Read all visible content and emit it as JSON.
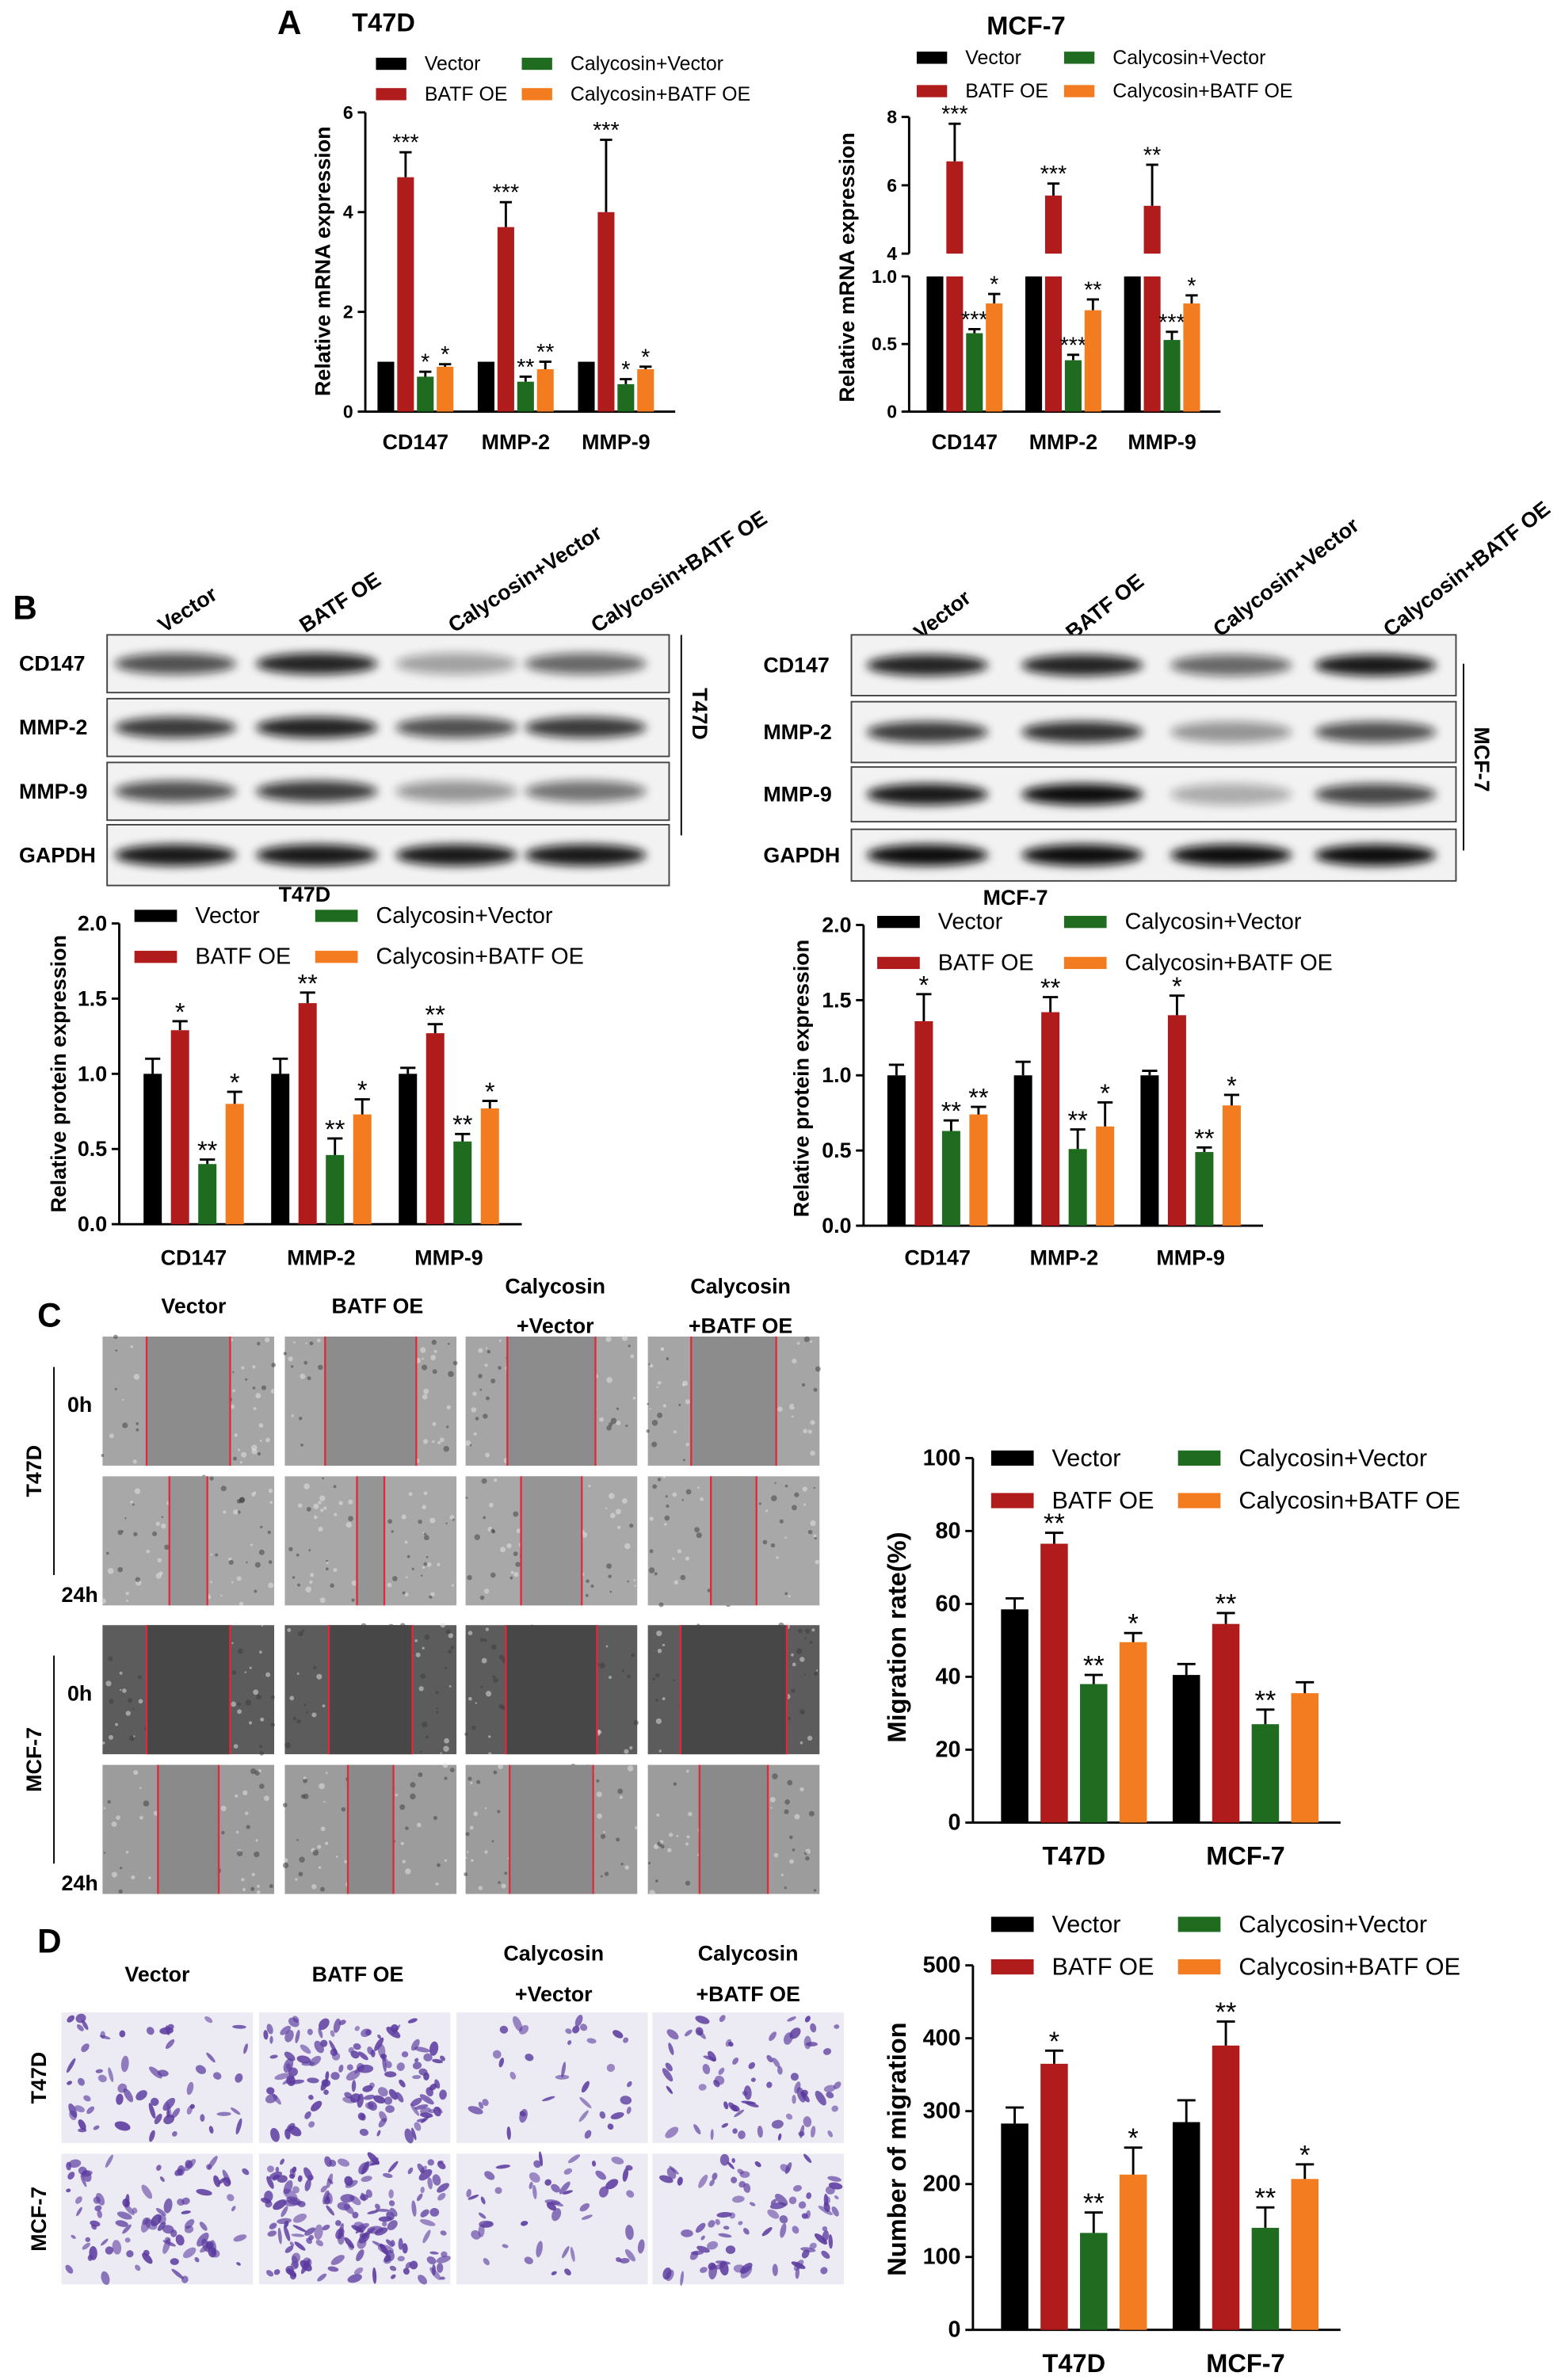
{
  "panels": [
    "A",
    "B",
    "C",
    "D"
  ],
  "chart_data": [
    {
      "type": "bar",
      "title": "T47D",
      "y_label": "Relative mRNA expression",
      "categories": [
        "CD147",
        "MMP-2",
        "MMP-9"
      ],
      "ylim": [
        0,
        6
      ],
      "yticks": [
        0,
        2,
        4,
        6
      ],
      "series": [
        {
          "name": "Vector",
          "color": "#000000",
          "values": [
            1,
            1,
            1
          ]
        },
        {
          "name": "BATF OE",
          "color": "#b01c1c",
          "values": [
            4.7,
            3.7,
            4.0
          ],
          "errors": [
            0.5,
            0.5,
            1.45
          ],
          "significance": [
            "***",
            "***",
            "***"
          ]
        },
        {
          "name": "Calycosin+Vector",
          "color": "#1f6b1f",
          "values": [
            0.7,
            0.6,
            0.55
          ],
          "errors": [
            0.1,
            0.1,
            0.1
          ],
          "significance": [
            "*",
            "**",
            "*"
          ]
        },
        {
          "name": "Calycosin+BATF OE",
          "color": "#f47c20",
          "values": [
            0.9,
            0.85,
            0.85
          ],
          "errors": [
            0.05,
            0.15,
            0.05
          ],
          "significance": [
            "*",
            "**",
            "*"
          ]
        }
      ]
    },
    {
      "type": "bar",
      "title": "MCF-7",
      "y_label": "Relative mRNA expression",
      "categories": [
        "CD147",
        "MMP-2",
        "MMP-9"
      ],
      "ylim": [
        0,
        1
      ],
      "yticks": [
        0,
        0.5,
        {
          "value": 1,
          "label": "1.0"
        }
      ],
      "ylim_upper": [
        4,
        8
      ],
      "yticks_upper": [
        4,
        6,
        8
      ],
      "series": [
        {
          "name": "Vector",
          "color": "#000000",
          "values": [
            1,
            1,
            1
          ]
        },
        {
          "name": "BATF OE",
          "color": "#b01c1c",
          "values": [
            6.7,
            5.7,
            5.4
          ],
          "errors": [
            1.1,
            0.35,
            1.2
          ],
          "significance": [
            "***",
            "***",
            "**"
          ]
        },
        {
          "name": "Calycosin+Vector",
          "color": "#1f6b1f",
          "values": [
            0.58,
            0.38,
            0.53
          ],
          "errors": [
            0.03,
            0.04,
            0.06
          ],
          "significance": [
            "***",
            "***",
            "***"
          ]
        },
        {
          "name": "Calycosin+BATF OE",
          "color": "#f47c20",
          "values": [
            0.8,
            0.75,
            0.8
          ],
          "errors": [
            0.07,
            0.08,
            0.06
          ],
          "significance": [
            "*",
            "**",
            "*"
          ]
        }
      ]
    },
    {
      "type": "bar",
      "title": "T47D",
      "y_label": "Relative protein expression",
      "categories": [
        "CD147",
        "MMP-2",
        "MMP-9"
      ],
      "ylim": [
        0,
        2
      ],
      "yticks": [
        {
          "value": 0,
          "label": "0.0"
        },
        0.5,
        {
          "value": 1,
          "label": "1.0"
        },
        1.5,
        {
          "value": 2,
          "label": "2.0"
        }
      ],
      "series": [
        {
          "name": "Vector",
          "color": "#000000",
          "values": [
            1.0,
            1.0,
            1.0
          ],
          "errors": [
            0.1,
            0.1,
            0.04
          ]
        },
        {
          "name": "BATF OE",
          "color": "#b01c1c",
          "values": [
            1.29,
            1.47,
            1.27
          ],
          "errors": [
            0.06,
            0.07,
            0.06
          ],
          "significance": [
            "*",
            "**",
            "**"
          ]
        },
        {
          "name": "Calycosin+Vector",
          "color": "#1f6b1f",
          "values": [
            0.4,
            0.46,
            0.55
          ],
          "errors": [
            0.03,
            0.11,
            0.05
          ],
          "significance": [
            "**",
            "**",
            "**"
          ]
        },
        {
          "name": "Calycosin+BATF OE",
          "color": "#f47c20",
          "values": [
            0.8,
            0.73,
            0.77
          ],
          "errors": [
            0.08,
            0.1,
            0.05
          ],
          "significance": [
            "*",
            "*",
            "*"
          ]
        }
      ]
    },
    {
      "type": "bar",
      "title": "MCF-7",
      "y_label": "Relative protein expression",
      "categories": [
        "CD147",
        "MMP-2",
        "MMP-9"
      ],
      "ylim": [
        0,
        2
      ],
      "yticks": [
        {
          "value": 0,
          "label": "0.0"
        },
        0.5,
        {
          "value": 1,
          "label": "1.0"
        },
        1.5,
        {
          "value": 2,
          "label": "2.0"
        }
      ],
      "series": [
        {
          "name": "Vector",
          "color": "#000000",
          "values": [
            1.0,
            1.0,
            1.0
          ],
          "errors": [
            0.07,
            0.09,
            0.03
          ]
        },
        {
          "name": "BATF OE",
          "color": "#b01c1c",
          "values": [
            1.36,
            1.42,
            1.4
          ],
          "errors": [
            0.18,
            0.1,
            0.13
          ],
          "significance": [
            "*",
            "**",
            "*"
          ]
        },
        {
          "name": "Calycosin+Vector",
          "color": "#1f6b1f",
          "values": [
            0.63,
            0.51,
            0.49
          ],
          "errors": [
            0.07,
            0.13,
            0.03
          ],
          "significance": [
            "**",
            "**",
            "**"
          ]
        },
        {
          "name": "Calycosin+BATF OE",
          "color": "#f47c20",
          "values": [
            0.74,
            0.66,
            0.8
          ],
          "errors": [
            0.05,
            0.16,
            0.07
          ],
          "significance": [
            "**",
            "*",
            "*"
          ]
        }
      ]
    },
    {
      "type": "bar",
      "y_label": "Migration rate(%)",
      "categories": [
        "T47D",
        "MCF-7"
      ],
      "ylim": [
        0,
        100
      ],
      "yticks": [
        0,
        20,
        40,
        60,
        80,
        100
      ],
      "series": [
        {
          "name": "Vector",
          "color": "#000000",
          "values": [
            58.5,
            40.5
          ],
          "errors": [
            3,
            3
          ]
        },
        {
          "name": "BATF OE",
          "color": "#b01c1c",
          "values": [
            76.5,
            54.5
          ],
          "errors": [
            3,
            3
          ],
          "significance": [
            "**",
            "**"
          ]
        },
        {
          "name": "Calycosin+Vector",
          "color": "#1f6b1f",
          "values": [
            38,
            27
          ],
          "errors": [
            2.5,
            4
          ],
          "significance": [
            "**",
            "**"
          ]
        },
        {
          "name": "Calycosin+BATF OE",
          "color": "#f47c20",
          "values": [
            49.5,
            35.5
          ],
          "errors": [
            2.5,
            3
          ],
          "significance": [
            "*",
            null
          ]
        }
      ]
    },
    {
      "type": "bar",
      "y_label": "Number of migration",
      "categories": [
        "T47D",
        "MCF-7"
      ],
      "ylim": [
        0,
        500
      ],
      "yticks": [
        0,
        100,
        200,
        300,
        400,
        500
      ],
      "series": [
        {
          "name": "Vector",
          "color": "#000000",
          "values": [
            283,
            285
          ],
          "errors": [
            22,
            30
          ]
        },
        {
          "name": "BATF OE",
          "color": "#b01c1c",
          "values": [
            365,
            390
          ],
          "errors": [
            18,
            33
          ],
          "significance": [
            "*",
            "**"
          ]
        },
        {
          "name": "Calycosin+Vector",
          "color": "#1f6b1f",
          "values": [
            133,
            140
          ],
          "errors": [
            28,
            28
          ],
          "significance": [
            "**",
            "**"
          ]
        },
        {
          "name": "Calycosin+BATF OE",
          "color": "#f47c20",
          "values": [
            213,
            207
          ],
          "errors": [
            37,
            20
          ],
          "significance": [
            "*",
            "*"
          ]
        }
      ]
    }
  ],
  "blots": [
    {
      "cell_line": "T47D",
      "lanes": [
        "Vector",
        "BATF OE",
        "Calycosin+Vector",
        "Calycosin+BATF OE"
      ],
      "rows": [
        "CD147",
        "MMP-2",
        "MMP-9",
        "GAPDH"
      ]
    },
    {
      "cell_line": "MCF-7",
      "lanes": [
        "Vector",
        "BATF OE",
        "Calycosin+Vector",
        "Calycosin+BATF OE"
      ],
      "rows": [
        "CD147",
        "MMP-2",
        "MMP-9",
        "GAPDH"
      ]
    }
  ],
  "wound_healing": {
    "columns": [
      [
        "Vector"
      ],
      [
        "BATF OE"
      ],
      [
        "Calycosin",
        "+Vector"
      ],
      [
        "Calycosin",
        "+BATF OE"
      ]
    ],
    "rows": [
      {
        "cell_line": "T47D",
        "times": [
          "0h",
          "24h"
        ]
      },
      {
        "cell_line": "MCF-7",
        "times": [
          "0h",
          "24h"
        ]
      }
    ]
  },
  "transwell": {
    "columns": [
      [
        "Vector"
      ],
      [
        "BATF OE"
      ],
      [
        "Calycosin",
        "+Vector"
      ],
      [
        "Calycosin",
        "+BATF OE"
      ]
    ],
    "rows": [
      "T47D",
      "MCF-7"
    ]
  }
}
